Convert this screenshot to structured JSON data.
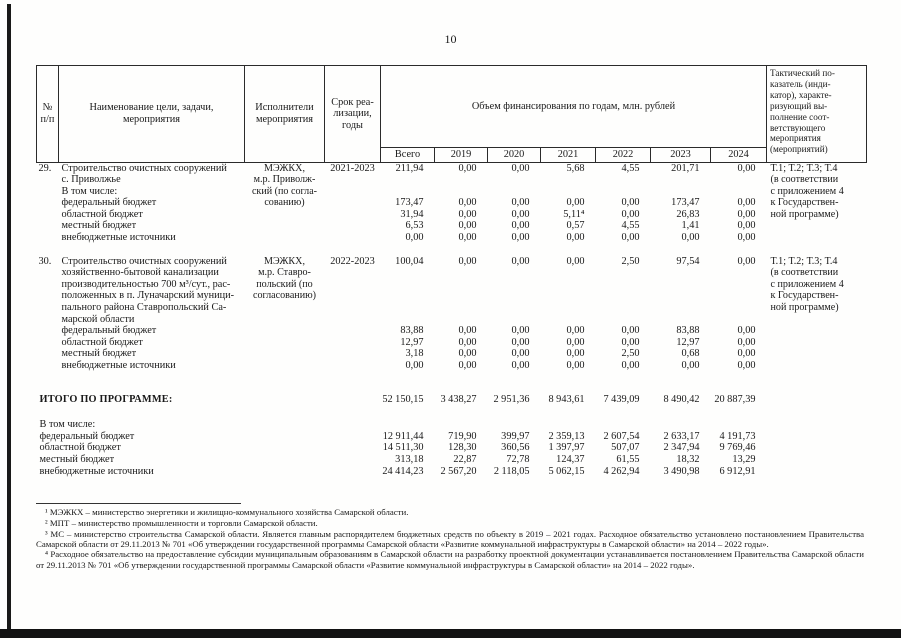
{
  "page": {
    "number": "10"
  },
  "table": {
    "header": {
      "num": "№\nп/п",
      "name": "Наименование цели, задачи,\nмероприятия",
      "executor": "Исполнители\nмероприятия",
      "term": "Срок реа-\nлизации,\nгоды",
      "financing": "Объем финансирования по годам, млн. рублей",
      "indicator": "Тактический по-\nказатель (инди-\nкатор), характе-\nризующий вы-\nполнение соот-\nветствующего\nмероприятия\n(мероприятий)",
      "years": [
        "Всего",
        "2019",
        "2020",
        "2021",
        "2022",
        "2023",
        "2024"
      ]
    },
    "items": [
      {
        "num": "29.",
        "name_lines": [
          "Строительство очистных сооружений",
          "с. Приволжье",
          "В том числе:"
        ],
        "executor_lines": [
          "МЭЖКХ,",
          "м.р. Приволж-",
          "ский (по согла-",
          "сованию)"
        ],
        "term": "2021-2023",
        "values": [
          "211,94",
          "0,00",
          "0,00",
          "5,68",
          "4,55",
          "201,71",
          "0,00"
        ],
        "indicator_lines": [
          "Т.1; Т.2; Т.3; Т.4",
          "(в соответствии",
          "с приложением 4",
          "к Государствен-",
          "ной программе)"
        ],
        "subrows": [
          {
            "label": "федеральный бюджет",
            "values": [
              "173,47",
              "0,00",
              "0,00",
              "0,00",
              "0,00",
              "173,47",
              "0,00"
            ]
          },
          {
            "label": "областной бюджет",
            "values": [
              "31,94",
              "0,00",
              "0,00",
              "5,11⁴",
              "0,00",
              "26,83",
              "0,00"
            ]
          },
          {
            "label": "местный бюджет",
            "values": [
              "6,53",
              "0,00",
              "0,00",
              "0,57",
              "4,55",
              "1,41",
              "0,00"
            ]
          },
          {
            "label": "внебюджетные источники",
            "values": [
              "0,00",
              "0,00",
              "0,00",
              "0,00",
              "0,00",
              "0,00",
              "0,00"
            ]
          }
        ]
      },
      {
        "num": "30.",
        "name_lines": [
          "Строительство очистных сооружений",
          "хозяйственно-бытовой канализации",
          "производительностью 700 м³/сут., рас-",
          "положенных в п. Луначарский муници-",
          "пального района Ставропольский Са-",
          "марской области"
        ],
        "executor_lines": [
          "МЭЖКХ,",
          "м.р. Ставро-",
          "польский (по",
          "согласованию)"
        ],
        "term": "2022-2023",
        "values": [
          "100,04",
          "0,00",
          "0,00",
          "0,00",
          "2,50",
          "97,54",
          "0,00"
        ],
        "indicator_lines": [
          "Т.1; Т.2; Т.3; Т.4",
          "(в соответствии",
          "с приложением 4",
          "к Государствен-",
          "ной программе)"
        ],
        "subrows": [
          {
            "label": "федеральный бюджет",
            "values": [
              "83,88",
              "0,00",
              "0,00",
              "0,00",
              "0,00",
              "83,88",
              "0,00"
            ]
          },
          {
            "label": "областной бюджет",
            "values": [
              "12,97",
              "0,00",
              "0,00",
              "0,00",
              "0,00",
              "12,97",
              "0,00"
            ]
          },
          {
            "label": "местный бюджет",
            "values": [
              "3,18",
              "0,00",
              "0,00",
              "0,00",
              "2,50",
              "0,68",
              "0,00"
            ]
          },
          {
            "label": "внебюджетные источники",
            "values": [
              "0,00",
              "0,00",
              "0,00",
              "0,00",
              "0,00",
              "0,00",
              "0,00"
            ]
          }
        ]
      }
    ],
    "totals": {
      "label": "ИТОГО ПО ПРОГРАММЕ:",
      "values": [
        "52 150,15",
        "3 438,27",
        "2 951,36",
        "8 943,61",
        "7 439,09",
        "8 490,42",
        "20 887,39"
      ],
      "sub_label": "В том числе:",
      "subrows": [
        {
          "label": "федеральный бюджет",
          "values": [
            "12 911,44",
            "719,90",
            "399,97",
            "2 359,13",
            "2 607,54",
            "2 633,17",
            "4 191,73"
          ]
        },
        {
          "label": "областной бюджет",
          "values": [
            "14 511,30",
            "128,30",
            "360,56",
            "1 397,97",
            "507,07",
            "2 347,94",
            "9 769,46"
          ]
        },
        {
          "label": "местный бюджет",
          "values": [
            "313,18",
            "22,87",
            "72,78",
            "124,37",
            "61,55",
            "18,32",
            "13,29"
          ]
        },
        {
          "label": "внебюджетные источники",
          "values": [
            "24 414,23",
            "2 567,20",
            "2 118,05",
            "5 062,15",
            "4 262,94",
            "3 490,98",
            "6 912,91"
          ]
        }
      ]
    }
  },
  "footnotes": [
    "¹ МЭЖКХ – министерство энергетики и жилищно-коммунального хозяйства Самарской области.",
    "² МПТ – министерство промышленности и торговли Самарской области.",
    "³ МС – министерство строительства Самарской области. Является главным распорядителем бюджетных средств по объекту в 2019 – 2021 годах. Расходное обязательство установлено постановлением Правительства Самарской области от 29.11.2013 № 701 «Об утверждении государственной программы Самарской области «Развитие коммунальной инфраструктуры в Самарской области» на 2014 – 2022 годы».",
    "⁴ Расходное обязательство на предоставление субсидии муниципальным образованиям в Самарской области на разработку проектной документации устанавливается постановлением Правительства Самарской области от 29.11.2013 № 701 «Об утверждении государственной программы Самарской области «Развитие коммунальной инфраструктуры в Самарской области» на 2014 – 2022 годы»."
  ]
}
